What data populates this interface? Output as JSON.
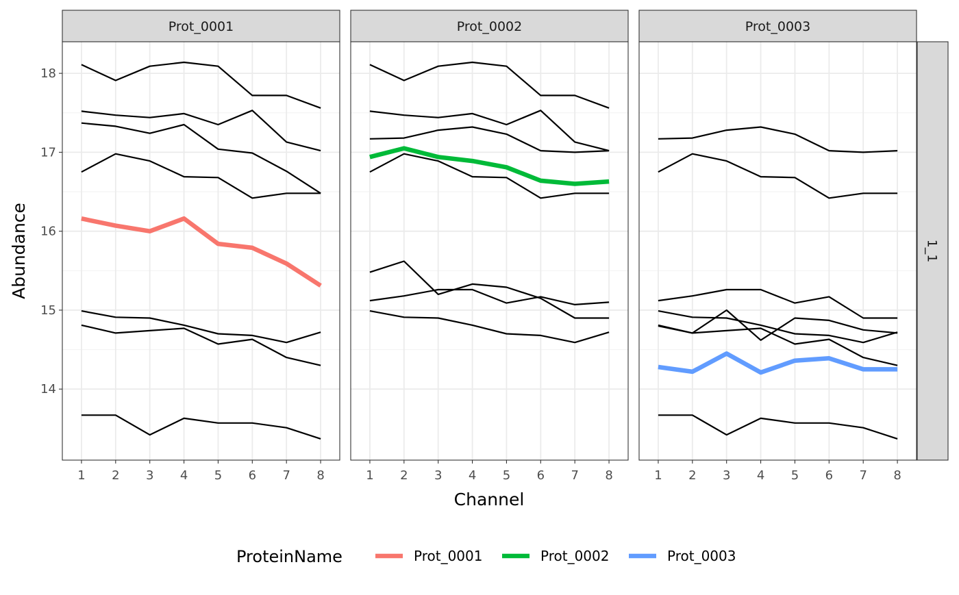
{
  "chart_data": {
    "type": "line",
    "facets": [
      "Prot_0001",
      "Prot_0002",
      "Prot_0003"
    ],
    "row_strip": "1_1",
    "xlabel": "Channel",
    "ylabel": "Abundance",
    "x": [
      1,
      2,
      3,
      4,
      5,
      6,
      7,
      8
    ],
    "x_ticks": [
      "1",
      "2",
      "3",
      "4",
      "5",
      "6",
      "7",
      "8"
    ],
    "y_ticks": [
      "14",
      "15",
      "16",
      "17",
      "18"
    ],
    "y_tick_values": [
      14,
      15,
      16,
      17,
      18
    ],
    "ylim": [
      13.1,
      18.4
    ],
    "xlim": [
      0.44,
      8.56
    ],
    "grid": true,
    "legend": {
      "title": "ProteinName",
      "position": "bottom",
      "entries": [
        {
          "name": "Prot_0001",
          "color": "#F8766D"
        },
        {
          "name": "Prot_0002",
          "color": "#00BA38"
        },
        {
          "name": "Prot_0003",
          "color": "#619CFF"
        }
      ]
    },
    "panels": [
      {
        "facet": "Prot_0001",
        "peptides": [
          {
            "values": [
              18.11,
              17.91,
              18.09,
              18.14,
              18.09,
              17.72,
              17.72,
              17.56
            ]
          },
          {
            "values": [
              17.52,
              17.47,
              17.44,
              17.49,
              17.35,
              17.53,
              17.13,
              17.02
            ]
          },
          {
            "values": [
              17.37,
              17.33,
              17.24,
              17.35,
              17.04,
              16.99,
              16.76,
              16.48
            ]
          },
          {
            "values": [
              16.75,
              16.98,
              16.89,
              16.69,
              16.68,
              16.42,
              16.48,
              16.48
            ]
          },
          {
            "values": [
              14.99,
              14.91,
              14.9,
              14.81,
              14.7,
              14.68,
              14.59,
              14.72
            ]
          },
          {
            "values": [
              14.81,
              14.71,
              14.74,
              14.77,
              14.57,
              14.63,
              14.4,
              14.3
            ]
          },
          {
            "values": [
              13.67,
              13.67,
              13.42,
              13.63,
              13.57,
              13.57,
              13.51,
              13.37
            ]
          }
        ],
        "protein": {
          "name": "Prot_0001",
          "color": "#F8766D",
          "values": [
            16.16,
            16.07,
            16.0,
            16.16,
            15.84,
            15.79,
            15.59,
            15.31
          ]
        }
      },
      {
        "facet": "Prot_0002",
        "peptides": [
          {
            "values": [
              18.11,
              17.91,
              18.09,
              18.14,
              18.09,
              17.72,
              17.72,
              17.56
            ]
          },
          {
            "values": [
              17.52,
              17.47,
              17.44,
              17.49,
              17.35,
              17.53,
              17.13,
              17.02
            ]
          },
          {
            "values": [
              17.17,
              17.18,
              17.28,
              17.32,
              17.23,
              17.02,
              17.0,
              17.02
            ]
          },
          {
            "values": [
              16.75,
              16.98,
              16.89,
              16.69,
              16.68,
              16.42,
              16.48,
              16.48
            ]
          },
          {
            "values": [
              15.48,
              15.62,
              15.2,
              15.33,
              15.29,
              15.15,
              14.9,
              14.9
            ]
          },
          {
            "values": [
              15.12,
              15.18,
              15.26,
              15.26,
              15.09,
              15.17,
              15.07,
              15.1
            ]
          },
          {
            "values": [
              14.99,
              14.91,
              14.9,
              14.81,
              14.7,
              14.68,
              14.59,
              14.72
            ]
          }
        ],
        "protein": {
          "name": "Prot_0002",
          "color": "#00BA38",
          "values": [
            16.94,
            17.05,
            16.94,
            16.89,
            16.81,
            16.64,
            16.6,
            16.63
          ]
        }
      },
      {
        "facet": "Prot_0003",
        "peptides": [
          {
            "values": [
              17.17,
              17.18,
              17.28,
              17.32,
              17.23,
              17.02,
              17.0,
              17.02
            ]
          },
          {
            "values": [
              16.75,
              16.98,
              16.89,
              16.69,
              16.68,
              16.42,
              16.48,
              16.48
            ]
          },
          {
            "values": [
              15.12,
              15.18,
              15.26,
              15.26,
              15.09,
              15.17,
              14.9,
              14.9
            ]
          },
          {
            "values": [
              14.99,
              14.91,
              14.9,
              14.81,
              14.7,
              14.68,
              14.59,
              14.72
            ]
          },
          {
            "values": [
              14.8,
              14.71,
              15.0,
              14.62,
              14.9,
              14.87,
              14.75,
              14.71
            ]
          },
          {
            "values": [
              14.81,
              14.71,
              14.74,
              14.77,
              14.57,
              14.63,
              14.4,
              14.3
            ]
          },
          {
            "values": [
              13.67,
              13.67,
              13.42,
              13.63,
              13.57,
              13.57,
              13.51,
              13.37
            ]
          }
        ],
        "protein": {
          "name": "Prot_0003",
          "color": "#619CFF",
          "values": [
            14.28,
            14.22,
            14.45,
            14.21,
            14.36,
            14.39,
            14.25,
            14.25
          ]
        }
      }
    ]
  }
}
